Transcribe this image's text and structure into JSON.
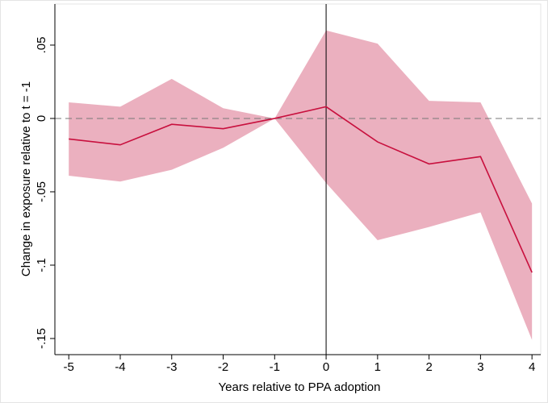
{
  "chart_data": {
    "type": "line",
    "x": [
      -5,
      -4,
      -3,
      -2,
      -1,
      0,
      1,
      2,
      3,
      4
    ],
    "series": [
      {
        "color": "#c8103e",
        "band_color": "#ebb0bf",
        "values": [
          -0.014,
          -0.018,
          -0.004,
          -0.007,
          0,
          0.008,
          -0.016,
          -0.031,
          -0.026,
          -0.105
        ],
        "upper": [
          0.011,
          0.008,
          0.027,
          0.007,
          0,
          0.06,
          0.051,
          0.012,
          0.011,
          -0.058
        ],
        "lower": [
          -0.039,
          -0.043,
          -0.035,
          -0.02,
          0,
          -0.044,
          -0.083,
          -0.074,
          -0.064,
          -0.151
        ]
      }
    ],
    "xlabel": "Years relative to PPA adoption",
    "ylabel": "Change in exposure relative to t = -1",
    "xlim": [
      -5.27,
      4.17
    ],
    "ylim": [
      -0.161,
      0.078
    ],
    "xticks": [
      -5,
      -4,
      -3,
      -2,
      -1,
      0,
      1,
      2,
      3,
      4
    ],
    "yticks": [
      {
        "value": 0.05,
        "label": ".05"
      },
      0,
      {
        "value": -0.05,
        "label": "-.05"
      },
      {
        "value": -0.1,
        "label": "-.1"
      },
      {
        "value": -0.15,
        "label": "-.15"
      }
    ],
    "hline": 0,
    "vline": 0
  }
}
